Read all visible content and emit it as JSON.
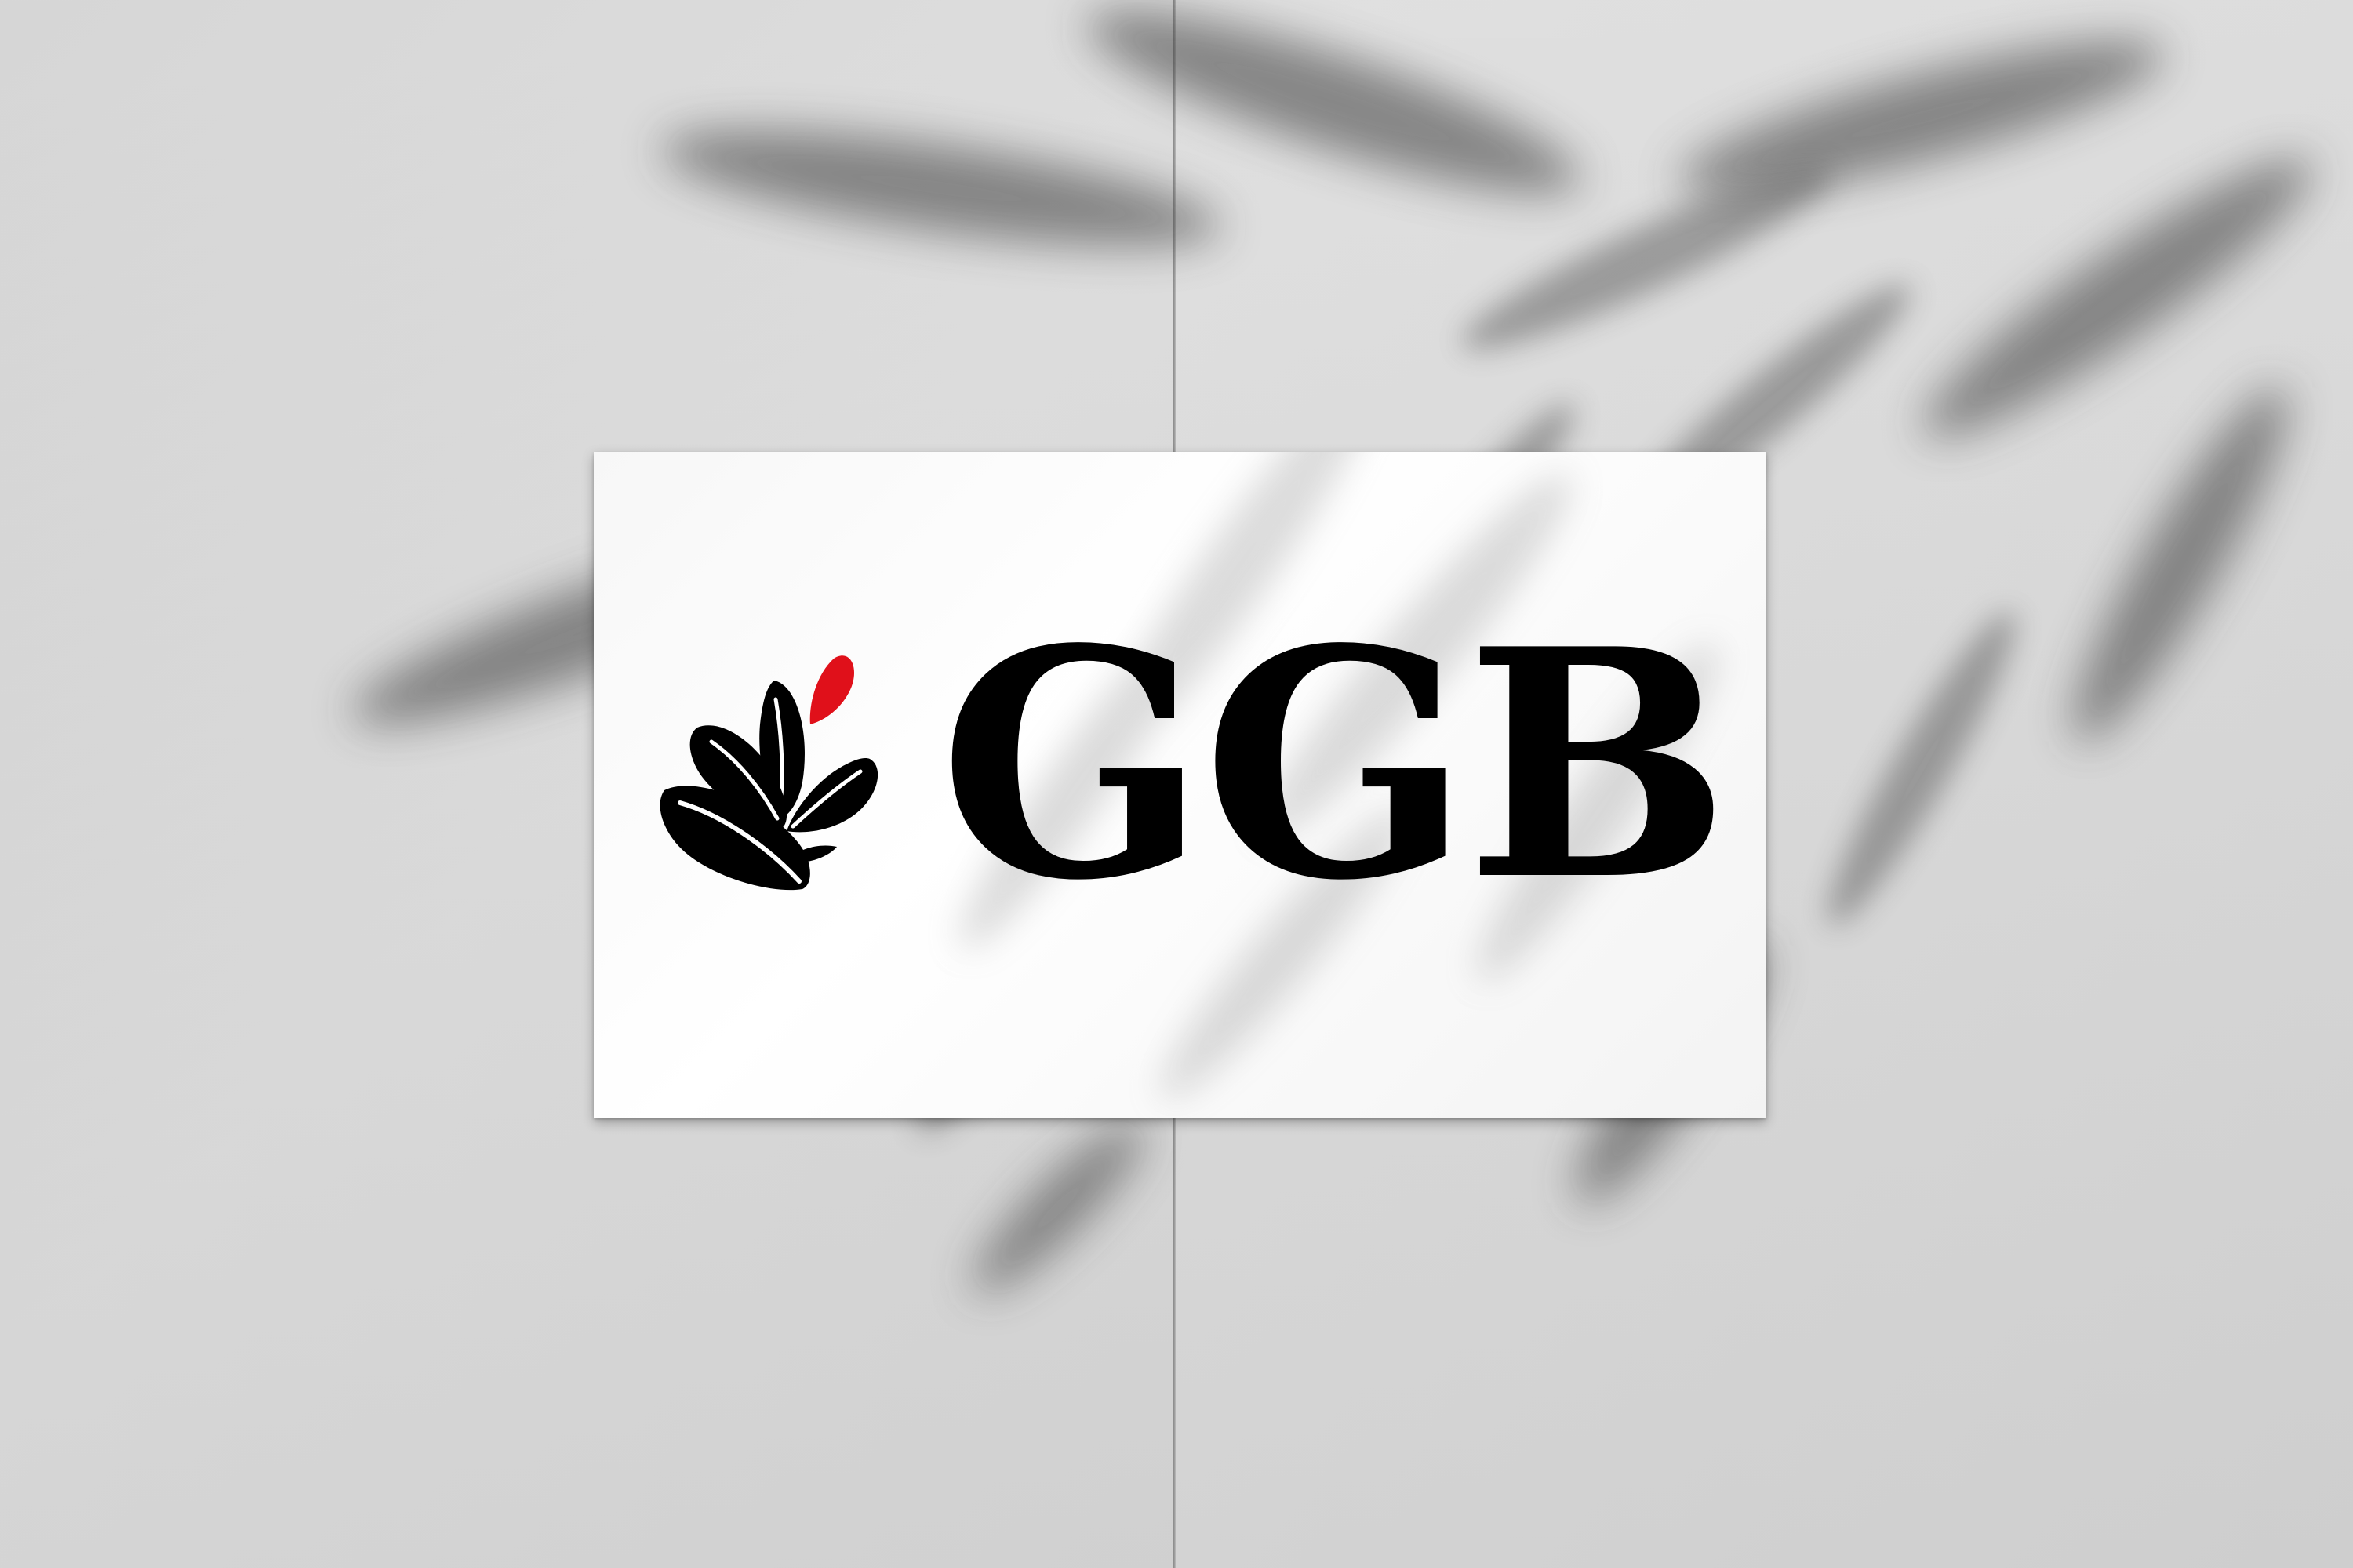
{
  "scene": {
    "background_color": "#d9d9d9",
    "card_color": "#ffffff"
  },
  "logo": {
    "letters": [
      "G",
      "G",
      "B"
    ],
    "ink_color": "#000000",
    "accent_color": "#e0101a",
    "mark_icon": "leaves-icon"
  }
}
